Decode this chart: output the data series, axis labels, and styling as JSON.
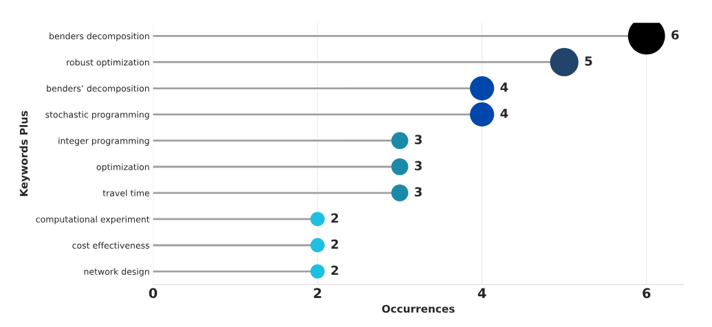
{
  "chart_data": {
    "type": "lollipop",
    "orientation": "horizontal",
    "xlabel": "Occurrences",
    "ylabel": "Keywords Plus",
    "categories": [
      "benders decomposition",
      "robust optimization",
      "benders’ decomposition",
      "stochastic programming",
      "integer programming",
      "optimization",
      "travel time",
      "computational experiment",
      "cost effectiveness",
      "network design"
    ],
    "values": [
      6,
      5,
      4,
      4,
      3,
      3,
      3,
      2,
      2,
      2
    ],
    "sizes": [
      1,
      0.59,
      0.43,
      0.43,
      0.21,
      0.21,
      0.21,
      0.15,
      0.15,
      0.15
    ],
    "colors": [
      "#000000",
      "#22446a",
      "#0047ab",
      "#0047ab",
      "#1a8aa8",
      "#1a8aa8",
      "#1a8aa8",
      "#1ec0e0",
      "#1ec0e0",
      "#1ec0e0"
    ],
    "xlim": [
      0,
      6.45
    ],
    "xticks": [
      0,
      2,
      4,
      6
    ],
    "grid": "x",
    "data_labels": true,
    "marker": "circle"
  }
}
